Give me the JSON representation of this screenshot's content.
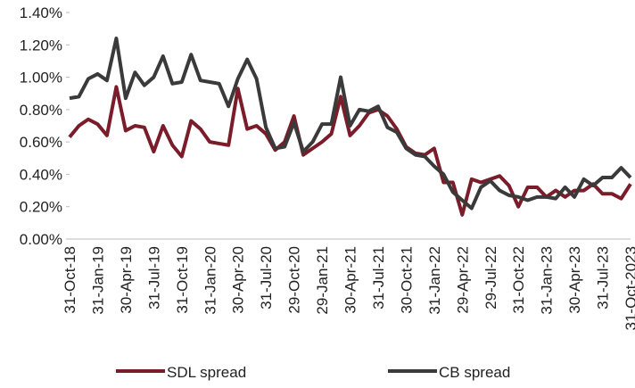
{
  "chart_data": {
    "type": "line",
    "categories": [
      "31-Oct-18",
      null,
      null,
      "31-Jan-19",
      null,
      null,
      "30-Apr-19",
      null,
      null,
      "31-Jul-19",
      null,
      null,
      "31-Oct-19",
      null,
      null,
      "31-Jan-20",
      null,
      null,
      "30-Apr-20",
      null,
      null,
      "31-Jul-20",
      null,
      null,
      "29-Oct-20",
      null,
      null,
      "29-Jan-21",
      null,
      null,
      "30-Apr-21",
      null,
      null,
      "31-Jul-21",
      null,
      null,
      "30-Oct-21",
      null,
      null,
      "31-Jan-22",
      null,
      null,
      "29-Apr-22",
      null,
      null,
      "29-Jul-22",
      null,
      null,
      "31-Oct-22",
      null,
      null,
      "31-Jan-23",
      null,
      null,
      "30-Apr-23",
      null,
      null,
      "31-Jul-23",
      null,
      null,
      "31-Oct-2023"
    ],
    "series": [
      {
        "name": "SDL spread",
        "color": "#7b1c2a",
        "values": [
          0.63,
          0.7,
          0.74,
          0.71,
          0.64,
          0.94,
          0.67,
          0.7,
          0.69,
          0.54,
          0.7,
          0.58,
          0.51,
          0.73,
          0.68,
          0.6,
          0.59,
          0.58,
          0.93,
          0.68,
          0.7,
          0.65,
          0.55,
          0.6,
          0.76,
          0.52,
          0.56,
          0.6,
          0.65,
          0.88,
          0.64,
          0.7,
          0.78,
          0.8,
          0.76,
          0.68,
          0.57,
          0.53,
          0.52,
          0.56,
          0.35,
          0.35,
          0.15,
          0.37,
          0.35,
          0.37,
          0.39,
          0.33,
          0.2,
          0.32,
          0.32,
          0.26,
          0.3,
          0.26,
          0.3,
          0.3,
          0.34,
          0.28,
          0.28,
          0.25,
          0.34
        ]
      },
      {
        "name": "CB spread",
        "color": "#3a3a3a",
        "values": [
          0.87,
          0.88,
          0.99,
          1.02,
          0.98,
          1.24,
          0.87,
          1.03,
          0.95,
          1.0,
          1.13,
          0.96,
          0.97,
          1.14,
          0.98,
          0.97,
          0.96,
          0.82,
          0.99,
          1.11,
          0.99,
          0.69,
          0.56,
          0.57,
          0.72,
          0.54,
          0.6,
          0.71,
          0.71,
          1.0,
          0.7,
          0.8,
          0.79,
          0.82,
          0.69,
          0.66,
          0.56,
          0.52,
          0.51,
          0.45,
          0.4,
          0.29,
          0.24,
          0.19,
          0.32,
          0.36,
          0.3,
          0.27,
          0.26,
          0.24,
          0.26,
          0.26,
          0.25,
          0.32,
          0.26,
          0.37,
          0.33,
          0.38,
          0.38,
          0.44,
          0.38
        ]
      }
    ],
    "ylim": [
      0,
      1.4
    ],
    "yticks": [
      {
        "value": 0,
        "label": "0.00%"
      },
      {
        "value": 0.2,
        "label": "0.20%"
      },
      {
        "value": 0.4,
        "label": "0.40%"
      },
      {
        "value": 0.6,
        "label": "0.60%"
      },
      {
        "value": 0.8,
        "label": "0.80%"
      },
      {
        "value": 1.0,
        "label": "1.00%"
      },
      {
        "value": 1.2,
        "label": "1.20%"
      },
      {
        "value": 1.4,
        "label": "1.40%"
      }
    ],
    "legend": "bottom"
  }
}
